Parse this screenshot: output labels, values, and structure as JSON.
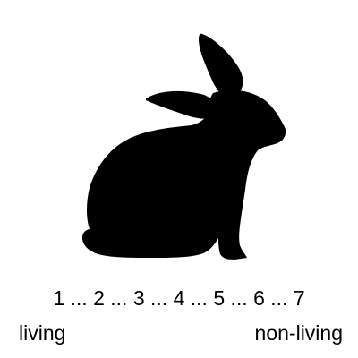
{
  "image": {
    "icon": "rabbit-silhouette-icon",
    "fill": "#000000",
    "background": "#ffffff"
  },
  "scale": {
    "points": [
      "1",
      "2",
      "3",
      "4",
      "5",
      "6",
      "7"
    ],
    "separator": " ... "
  },
  "anchors": {
    "left": "living",
    "right": "non-living"
  }
}
